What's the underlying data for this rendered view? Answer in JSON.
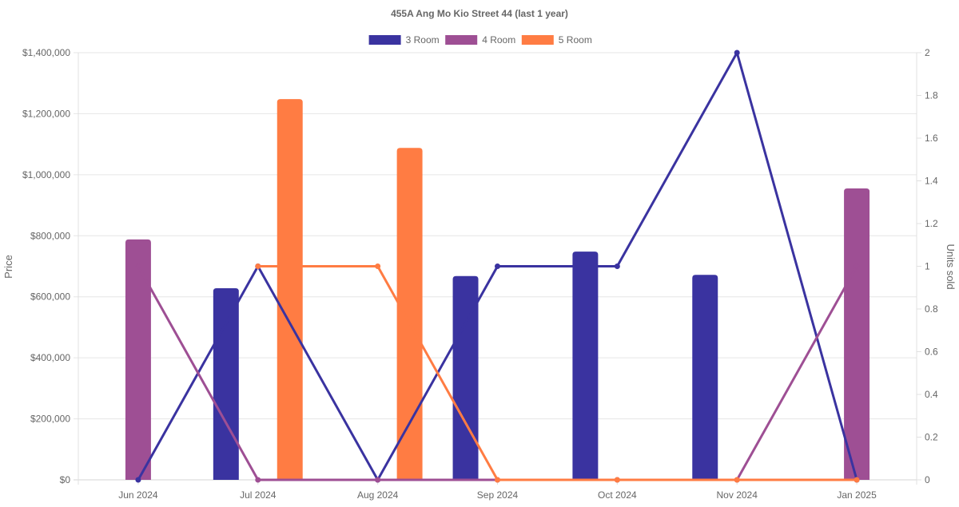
{
  "chart_data": {
    "type": "bar",
    "title": "455A Ang Mo Kio Street 44 (last 1 year)",
    "categories": [
      "Jun 2024",
      "Jul 2024",
      "Aug 2024",
      "Sep 2024",
      "Oct 2024",
      "Nov 2024",
      "Jan 2025"
    ],
    "ylabel": "Price",
    "y2label": "Units sold",
    "ylim": [
      0,
      1400000
    ],
    "y2lim": [
      0,
      2
    ],
    "yticks": [
      "$0",
      "$200,000",
      "$400,000",
      "$600,000",
      "$800,000",
      "$1,000,000",
      "$1,200,000",
      "$1,400,000"
    ],
    "y2ticks": [
      "0",
      "0.2",
      "0.4",
      "0.6",
      "0.8",
      "1",
      "1.2",
      "1.4",
      "1.6",
      "1.8",
      "2"
    ],
    "grid": true,
    "legend_position": "top-center",
    "series": [
      {
        "name": "3 Room",
        "color": "#3a33a0",
        "price": [
          null,
          628000,
          null,
          668000,
          748000,
          672000,
          null
        ],
        "units_sold": [
          0,
          1,
          0,
          1,
          1,
          2,
          0
        ]
      },
      {
        "name": "4 Room",
        "color": "#9e4f94",
        "price": [
          788000,
          null,
          null,
          null,
          null,
          null,
          955000
        ],
        "units_sold": [
          1,
          0,
          0,
          0,
          0,
          0,
          1
        ]
      },
      {
        "name": "5 Room",
        "color": "#ff7c43",
        "price": [
          null,
          1248000,
          1088000,
          null,
          null,
          null,
          null
        ],
        "units_sold": [
          null,
          1,
          1,
          0,
          0,
          0,
          0
        ]
      }
    ]
  }
}
